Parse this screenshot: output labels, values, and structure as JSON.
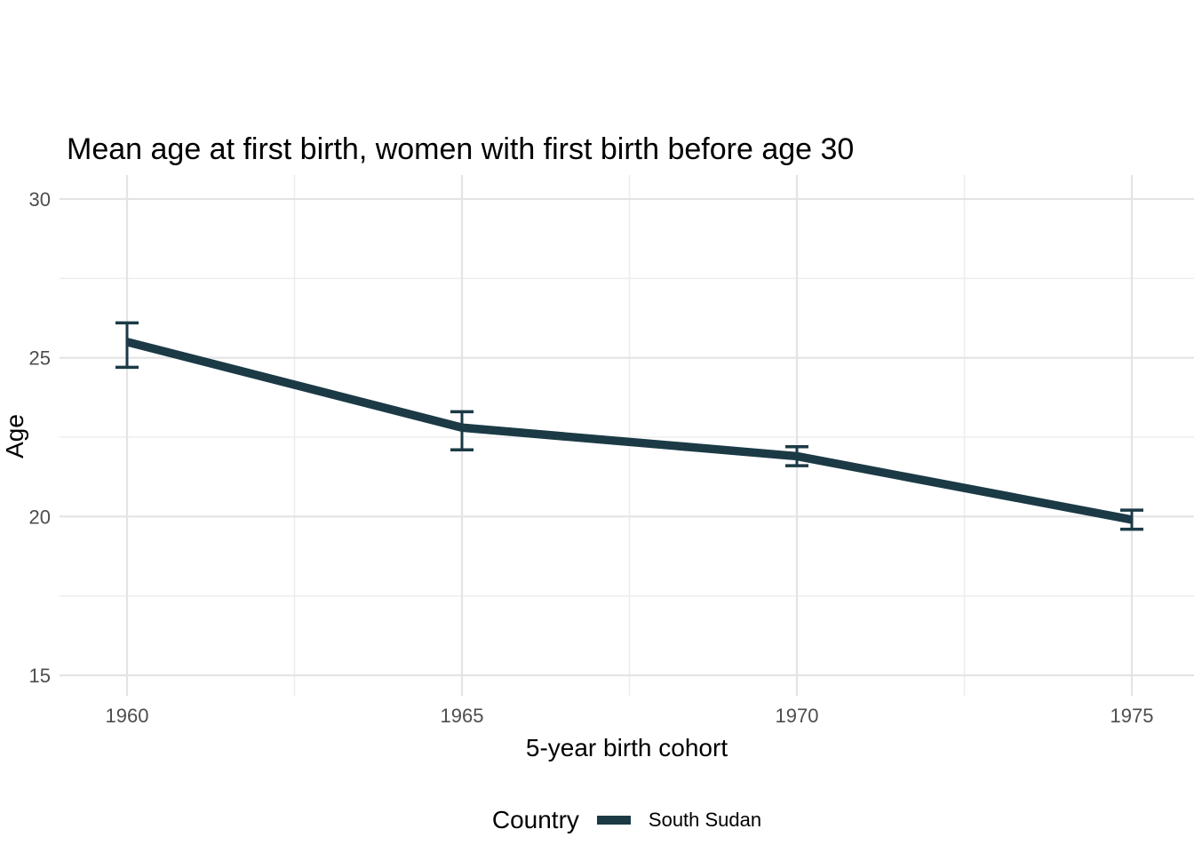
{
  "chart_data": {
    "type": "line",
    "title": "Mean age at first birth, women with first birth before age 30",
    "xlabel": "5-year birth cohort",
    "ylabel": "Age",
    "x": [
      1960,
      1965,
      1970,
      1975
    ],
    "x_ticks": [
      1960,
      1965,
      1970,
      1975
    ],
    "x_minor": [
      1962.5,
      1967.5,
      1972.5
    ],
    "y_ticks": [
      15,
      20,
      25,
      30
    ],
    "y_minor": [
      17.5,
      22.5,
      27.5
    ],
    "xlim": [
      1960,
      1975
    ],
    "ylim": [
      15,
      30
    ],
    "grid": "major+minor",
    "legend_position": "bottom",
    "series": [
      {
        "name": "South Sudan",
        "values": [
          25.5,
          22.8,
          21.9,
          19.9
        ],
        "ci_low": [
          24.7,
          22.1,
          21.6,
          19.6
        ],
        "ci_high": [
          26.1,
          23.3,
          22.2,
          20.2
        ],
        "color": "#1b3a46"
      }
    ],
    "legend": {
      "title": "Country",
      "items": [
        "South Sudan"
      ]
    }
  },
  "colors": {
    "line": "#1b3a46",
    "grid_major": "#e4e4e4",
    "grid_minor": "#ededed",
    "tick_label": "#4d4d4d",
    "text": "#000000",
    "background": "#ffffff"
  }
}
